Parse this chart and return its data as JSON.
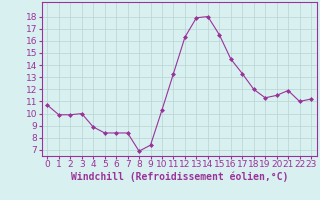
{
  "x": [
    0,
    1,
    2,
    3,
    4,
    5,
    6,
    7,
    8,
    9,
    10,
    11,
    12,
    13,
    14,
    15,
    16,
    17,
    18,
    19,
    20,
    21,
    22,
    23
  ],
  "y": [
    10.7,
    9.9,
    9.9,
    10.0,
    8.9,
    8.4,
    8.4,
    8.4,
    6.9,
    7.4,
    10.3,
    13.3,
    16.3,
    17.9,
    18.0,
    16.5,
    14.5,
    13.3,
    12.0,
    11.3,
    11.5,
    11.9,
    11.0,
    11.2
  ],
  "line_color": "#993399",
  "marker": "D",
  "marker_size": 2,
  "bg_color": "#d9f0f0",
  "grid_color": "#b8d4d4",
  "xlabel": "Windchill (Refroidissement éolien,°C)",
  "xlabel_fontsize": 7,
  "tick_fontsize": 6.5,
  "ylim": [
    6.5,
    19.2
  ],
  "xlim": [
    -0.5,
    23.5
  ],
  "yticks": [
    7,
    8,
    9,
    10,
    11,
    12,
    13,
    14,
    15,
    16,
    17,
    18
  ],
  "xticks": [
    0,
    1,
    2,
    3,
    4,
    5,
    6,
    7,
    8,
    9,
    10,
    11,
    12,
    13,
    14,
    15,
    16,
    17,
    18,
    19,
    20,
    21,
    22,
    23
  ]
}
